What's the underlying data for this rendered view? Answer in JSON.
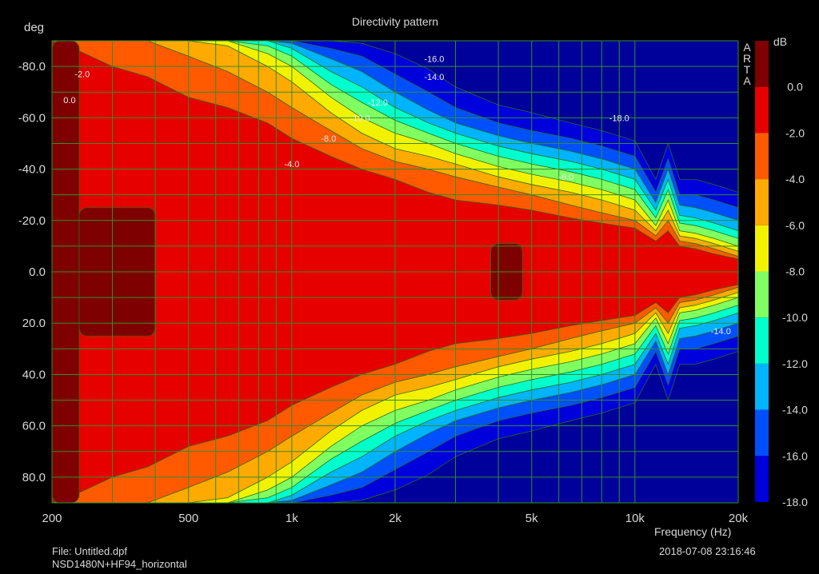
{
  "colors": {
    "background": "#000000",
    "grid": "#2f8f2f",
    "text": "#d8d8d8",
    "bands": [
      "#7f0000",
      "#e60000",
      "#ff5a00",
      "#ffaa00",
      "#f2f200",
      "#80ff60",
      "#00ffcc",
      "#00b4ff",
      "#0050ff",
      "#0000dc"
    ],
    "below_min": "#00009a"
  },
  "header": {
    "title": "Directivity pattern"
  },
  "footer": {
    "file": "File: Untitled.dpf",
    "measurement": "NSD1480N+HF94_horizontal",
    "timestamp": "2018-07-08  23:16:46"
  },
  "watermark": [
    "A",
    "R",
    "T",
    "A"
  ],
  "chart_data": {
    "type": "heatmap",
    "title": "Directivity pattern",
    "xlabel": "Frequency (Hz)",
    "ylabel": "deg",
    "x_scale": "log",
    "xlim": [
      200,
      20000
    ],
    "ylim": [
      -90,
      90
    ],
    "y_inverted": true,
    "grid": true,
    "x_ticks": [
      {
        "value": 200,
        "label": "200"
      },
      {
        "value": 500,
        "label": "500"
      },
      {
        "value": 1000,
        "label": "1k"
      },
      {
        "value": 2000,
        "label": "2k"
      },
      {
        "value": 5000,
        "label": "5k"
      },
      {
        "value": 10000,
        "label": "10k"
      },
      {
        "value": 20000,
        "label": "20k"
      }
    ],
    "y_ticks": [
      {
        "value": -80,
        "label": "-80.0"
      },
      {
        "value": -60,
        "label": "-60.0"
      },
      {
        "value": -40,
        "label": "-40.0"
      },
      {
        "value": -20,
        "label": "-20.0"
      },
      {
        "value": 0,
        "label": "0.0"
      },
      {
        "value": 20,
        "label": "20.0"
      },
      {
        "value": 40,
        "label": "40.0"
      },
      {
        "value": 60,
        "label": "60.0"
      },
      {
        "value": 80,
        "label": "80.0"
      }
    ],
    "colorbar": {
      "unit": "dB",
      "levels": [
        0,
        -2,
        -4,
        -6,
        -8,
        -10,
        -12,
        -14,
        -16,
        -18
      ],
      "labels": [
        "0.0",
        "-2.0",
        "-4.0",
        "-6.0",
        "-8.0",
        "-10.0",
        "-12.0",
        "-14.0",
        "-16.0",
        "-18.0"
      ]
    },
    "contour_width_deg": {
      "frequencies": [
        200,
        240,
        300,
        380,
        500,
        650,
        850,
        1000,
        1300,
        1600,
        2000,
        2500,
        3000,
        4000,
        5000,
        6500,
        8000,
        10000,
        11500,
        12500,
        13500,
        15000,
        17000,
        20000
      ],
      "levels": {
        "-2": [
          90,
          86,
          80,
          76,
          68,
          64,
          58,
          52,
          45,
          40,
          36,
          31,
          28,
          26,
          24,
          21,
          19,
          17,
          12,
          16,
          10,
          9,
          7,
          5
        ],
        "-4": [
          90,
          90,
          90,
          90,
          84,
          78,
          70,
          64,
          55,
          48,
          43,
          40,
          37,
          33,
          30,
          26,
          23,
          20,
          14,
          20,
          12,
          11,
          9,
          6
        ],
        "-6": [
          90,
          90,
          90,
          90,
          90,
          88,
          80,
          74,
          62,
          54,
          48,
          45,
          42,
          37,
          34,
          31,
          28,
          24,
          16,
          24,
          14,
          13,
          11,
          8
        ],
        "-8": [
          90,
          90,
          90,
          90,
          90,
          90,
          85,
          80,
          68,
          60,
          54,
          50,
          46,
          41,
          38,
          35,
          32,
          28,
          18,
          28,
          16,
          15,
          13,
          10
        ],
        "-10": [
          90,
          90,
          90,
          90,
          90,
          90,
          88,
          84,
          73,
          66,
          59,
          54,
          50,
          45,
          42,
          39,
          36,
          32,
          21,
          32,
          19,
          18,
          16,
          13
        ],
        "-12": [
          90,
          90,
          90,
          90,
          90,
          90,
          90,
          87,
          78,
          72,
          64,
          58,
          54,
          49,
          46,
          43,
          40,
          36,
          24,
          36,
          22,
          21,
          19,
          16
        ],
        "-14": [
          90,
          90,
          90,
          90,
          90,
          90,
          90,
          89,
          83,
          78,
          70,
          63,
          58,
          53,
          50,
          47,
          44,
          40,
          27,
          40,
          26,
          25,
          23,
          20
        ],
        "-16": [
          90,
          90,
          90,
          90,
          90,
          90,
          90,
          90,
          87,
          84,
          77,
          70,
          64,
          58,
          55,
          52,
          49,
          45,
          31,
          44,
          30,
          30,
          28,
          25
        ],
        "-18": [
          90,
          90,
          90,
          90,
          90,
          90,
          90,
          90,
          90,
          89,
          85,
          79,
          72,
          65,
          62,
          58,
          55,
          51,
          36,
          50,
          36,
          36,
          34,
          31
        ]
      }
    },
    "zero_db_regions": [
      {
        "f_range": [
          200,
          240
        ],
        "deg_range": [
          -90,
          90
        ]
      },
      {
        "f_range": [
          240,
          400
        ],
        "deg_range": [
          -25,
          25
        ]
      },
      {
        "f_range": [
          3800,
          4700
        ],
        "deg_range": [
          -11,
          11
        ]
      }
    ],
    "annotations": [
      {
        "text": "-2.0",
        "f": 245,
        "deg": -77
      },
      {
        "text": "0.0",
        "f": 225,
        "deg": -67
      },
      {
        "text": "-16.0",
        "f": 2600,
        "deg": -83
      },
      {
        "text": "-14.0",
        "f": 2600,
        "deg": -76
      },
      {
        "text": "-12.0",
        "f": 1780,
        "deg": -66
      },
      {
        "text": "-10.0",
        "f": 1580,
        "deg": -60
      },
      {
        "text": "-8.0",
        "f": 1280,
        "deg": -52
      },
      {
        "text": "-4.0",
        "f": 1000,
        "deg": -42
      },
      {
        "text": "-6.0",
        "f": 6300,
        "deg": -37
      },
      {
        "text": "-18.0",
        "f": 9000,
        "deg": -60
      },
      {
        "text": "-14.0",
        "f": 17800,
        "deg": 23
      }
    ]
  }
}
